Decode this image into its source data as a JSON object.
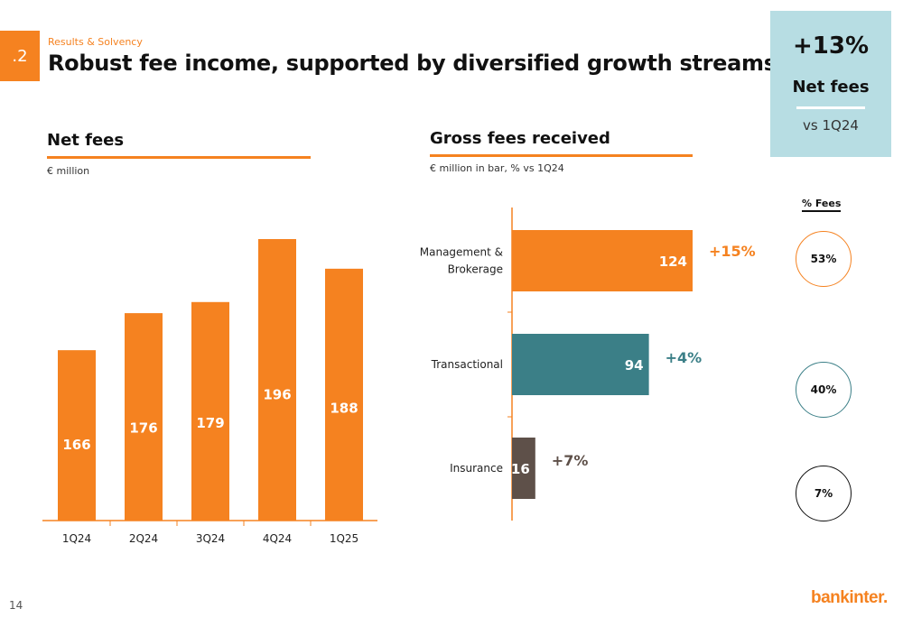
{
  "header": {
    "section_number": ".2",
    "breadcrumb": "Results & Solvency",
    "title": "Robust fee income, supported by diversified growth streams"
  },
  "kpi": {
    "value": "+13%",
    "label": "Net fees",
    "sub": "vs 1Q24"
  },
  "left_panel": {
    "title": "Net fees",
    "unit": "€ million"
  },
  "right_panel": {
    "title": "Gross fees received",
    "unit": "€ million in bar,  % vs 1Q24"
  },
  "fees_share": {
    "header": "% Fees",
    "items": [
      {
        "value": "53%",
        "color": "#f58220"
      },
      {
        "value": "40%",
        "color": "#3b7f87"
      },
      {
        "value": "7%",
        "color": "#111111"
      }
    ]
  },
  "footer": {
    "page_number": "14",
    "logo": "bankinter."
  },
  "colors": {
    "accent": "#f58220",
    "teal": "#3b7f87",
    "brown": "#5e5049",
    "kpi_bg": "#b7dde3"
  },
  "chart_data": [
    {
      "type": "bar",
      "title": "Net fees",
      "ylabel": "€ million",
      "categories": [
        "1Q24",
        "2Q24",
        "3Q24",
        "4Q24",
        "1Q25"
      ],
      "values": [
        166,
        176,
        179,
        196,
        188
      ],
      "ylim": [
        120,
        205
      ],
      "grid": false,
      "bar_color": "#f58220"
    },
    {
      "type": "bar",
      "orientation": "horizontal",
      "title": "Gross fees received",
      "categories": [
        "Management & Brokerage",
        "Transactional",
        "Insurance"
      ],
      "values": [
        124,
        94,
        16
      ],
      "change_labels": [
        "+15%",
        "+4%",
        "+7%"
      ],
      "colors": [
        "#f58220",
        "#3b7f87",
        "#5e5049"
      ],
      "xlim": [
        0,
        140
      ],
      "grid": false
    }
  ]
}
